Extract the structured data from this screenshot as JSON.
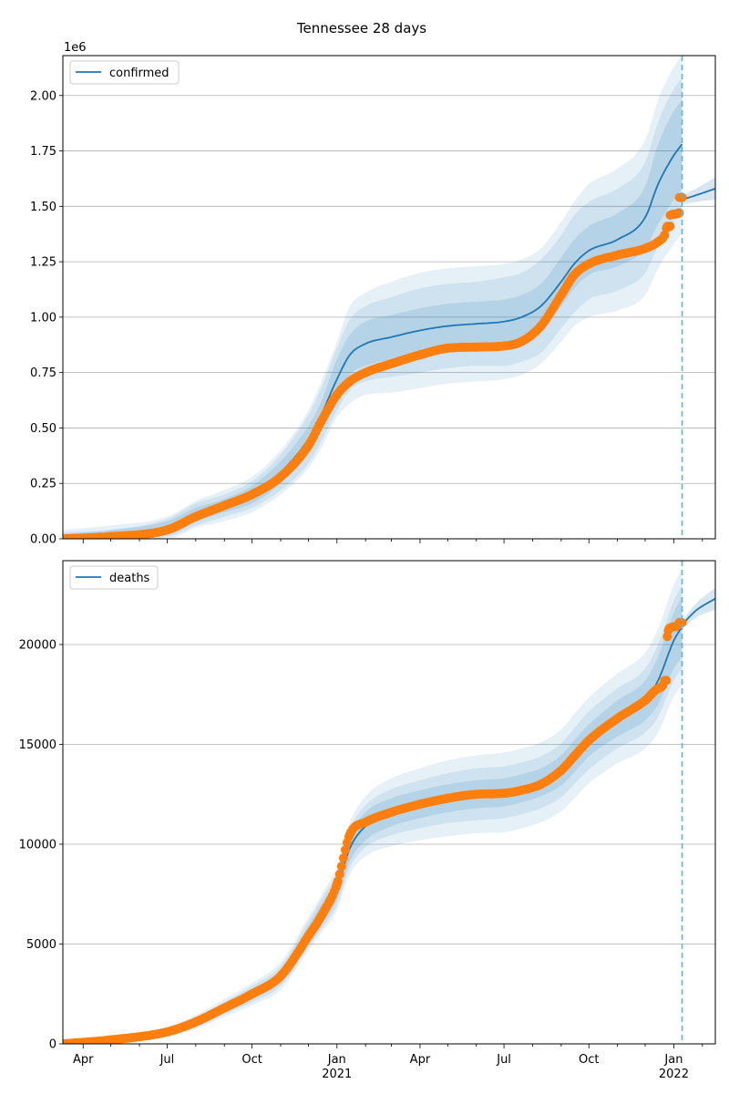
{
  "title": "Tennessee 28 days",
  "colors": {
    "line": "#1f77b4",
    "observed": "#ff7f0e",
    "band": "#1f77b4",
    "forecast_start": "#6baed6",
    "grid": "#b0b0b0"
  },
  "chart_data": [
    {
      "type": "line",
      "series_name": "confirmed",
      "offset_label": "1e6",
      "ylim": [
        0,
        2.18
      ],
      "yticks": [
        0.0,
        0.25,
        0.5,
        0.75,
        1.0,
        1.25,
        1.5,
        1.75,
        2.0
      ],
      "ytick_labels": [
        "0.00",
        "0.25",
        "0.50",
        "0.75",
        "1.00",
        "1.25",
        "1.50",
        "1.75",
        "2.00"
      ],
      "grid": "horizontal",
      "legend": "top-left",
      "forecast_start": "2022-01-10",
      "xlim": [
        "2020-03-10",
        "2022-02-15"
      ],
      "model": {
        "dates": [
          "2020-03-10",
          "2020-05-01",
          "2020-07-01",
          "2020-08-01",
          "2020-09-01",
          "2020-10-01",
          "2020-11-01",
          "2020-12-01",
          "2020-12-15",
          "2021-01-01",
          "2021-01-15",
          "2021-02-01",
          "2021-03-01",
          "2021-04-01",
          "2021-05-01",
          "2021-06-01",
          "2021-07-01",
          "2021-07-20",
          "2021-08-10",
          "2021-09-01",
          "2021-09-15",
          "2021-10-01",
          "2021-11-01",
          "2021-12-01",
          "2021-12-15",
          "2022-01-01",
          "2022-01-10"
        ],
        "values": [
          0.0,
          0.01,
          0.05,
          0.11,
          0.15,
          0.2,
          0.3,
          0.45,
          0.56,
          0.72,
          0.83,
          0.88,
          0.91,
          0.94,
          0.96,
          0.97,
          0.98,
          1.0,
          1.05,
          1.16,
          1.24,
          1.3,
          1.35,
          1.45,
          1.6,
          1.73,
          1.78
        ],
        "band_1": [
          0.02,
          0.03,
          0.03,
          0.03,
          0.03,
          0.04,
          0.05,
          0.06,
          0.06,
          0.09,
          0.09,
          0.1,
          0.1,
          0.1,
          0.1,
          0.1,
          0.1,
          0.1,
          0.1,
          0.11,
          0.11,
          0.11,
          0.12,
          0.14,
          0.18,
          0.2,
          0.2
        ],
        "band_2": [
          0.03,
          0.03,
          0.04,
          0.05,
          0.05,
          0.06,
          0.08,
          0.11,
          0.12,
          0.14,
          0.16,
          0.17,
          0.18,
          0.19,
          0.19,
          0.19,
          0.2,
          0.2,
          0.21,
          0.21,
          0.22,
          0.22,
          0.23,
          0.25,
          0.28,
          0.3,
          0.3
        ],
        "band_3": [
          0.04,
          0.05,
          0.05,
          0.06,
          0.07,
          0.08,
          0.1,
          0.13,
          0.15,
          0.17,
          0.22,
          0.23,
          0.25,
          0.26,
          0.26,
          0.26,
          0.26,
          0.26,
          0.26,
          0.27,
          0.28,
          0.3,
          0.32,
          0.35,
          0.38,
          0.4,
          0.4
        ]
      },
      "forecast": {
        "dates": [
          "2022-01-10",
          "2022-01-25",
          "2022-02-15"
        ],
        "values": [
          1.53,
          1.55,
          1.58
        ],
        "band": [
          0.02,
          0.03,
          0.05
        ]
      },
      "observed": {
        "dates": [
          "2020-03-10",
          "2020-05-01",
          "2020-07-01",
          "2020-08-01",
          "2020-09-01",
          "2020-10-01",
          "2020-11-01",
          "2020-12-01",
          "2020-12-15",
          "2021-01-01",
          "2021-01-15",
          "2021-02-01",
          "2021-03-01",
          "2021-04-01",
          "2021-05-01",
          "2021-06-01",
          "2021-07-01",
          "2021-07-20",
          "2021-08-10",
          "2021-09-01",
          "2021-09-15",
          "2021-10-01",
          "2021-11-01",
          "2021-12-01",
          "2021-12-15",
          "2021-12-22",
          "2021-12-25",
          "2021-12-27",
          "2021-12-28",
          "2022-01-03",
          "2022-01-06",
          "2022-01-07",
          "2022-01-10"
        ],
        "values": [
          0.0,
          0.01,
          0.04,
          0.1,
          0.15,
          0.2,
          0.28,
          0.42,
          0.53,
          0.65,
          0.71,
          0.75,
          0.79,
          0.83,
          0.86,
          0.865,
          0.87,
          0.89,
          0.96,
          1.1,
          1.19,
          1.24,
          1.28,
          1.31,
          1.34,
          1.37,
          1.41,
          1.41,
          1.46,
          1.465,
          1.47,
          1.54,
          1.54
        ]
      }
    },
    {
      "type": "line",
      "series_name": "deaths",
      "ylim": [
        0,
        24200
      ],
      "yticks": [
        0,
        5000,
        10000,
        15000,
        20000
      ],
      "ytick_labels": [
        "0",
        "5000",
        "10000",
        "15000",
        "20000"
      ],
      "grid": "horizontal",
      "legend": "top-left",
      "forecast_start": "2022-01-10",
      "xlim": [
        "2020-03-10",
        "2022-02-15"
      ],
      "xticks": [
        {
          "date": "2020-04-01",
          "label": "Apr",
          "year": ""
        },
        {
          "date": "2020-07-01",
          "label": "Jul",
          "year": ""
        },
        {
          "date": "2020-10-01",
          "label": "Oct",
          "year": ""
        },
        {
          "date": "2021-01-01",
          "label": "Jan",
          "year": "2021"
        },
        {
          "date": "2021-04-01",
          "label": "Apr",
          "year": ""
        },
        {
          "date": "2021-07-01",
          "label": "Jul",
          "year": ""
        },
        {
          "date": "2021-10-01",
          "label": "Oct",
          "year": ""
        },
        {
          "date": "2022-01-01",
          "label": "Jan",
          "year": "2022"
        }
      ],
      "model": {
        "dates": [
          "2020-03-10",
          "2020-05-01",
          "2020-07-01",
          "2020-08-01",
          "2020-09-01",
          "2020-10-01",
          "2020-11-01",
          "2020-12-01",
          "2020-12-15",
          "2021-01-01",
          "2021-01-15",
          "2021-02-01",
          "2021-03-01",
          "2021-04-01",
          "2021-05-01",
          "2021-06-01",
          "2021-07-01",
          "2021-07-20",
          "2021-08-10",
          "2021-09-01",
          "2021-09-15",
          "2021-10-01",
          "2021-11-01",
          "2021-12-01",
          "2021-12-15",
          "2022-01-01",
          "2022-01-10"
        ],
        "values": [
          0,
          200,
          600,
          1100,
          1800,
          2500,
          3400,
          5500,
          6500,
          7800,
          9800,
          10900,
          11600,
          12000,
          12300,
          12500,
          12600,
          12800,
          13100,
          13700,
          14400,
          15200,
          16300,
          17200,
          18200,
          20200,
          20900
        ],
        "band_1": [
          50,
          80,
          100,
          150,
          200,
          250,
          300,
          400,
          500,
          550,
          650,
          700,
          700,
          700,
          700,
          700,
          700,
          700,
          700,
          750,
          800,
          800,
          900,
          1000,
          1200,
          1400,
          1500
        ],
        "band_2": [
          80,
          120,
          180,
          250,
          300,
          400,
          500,
          650,
          750,
          850,
          950,
          1050,
          1150,
          1200,
          1250,
          1300,
          1300,
          1300,
          1300,
          1350,
          1400,
          1450,
          1500,
          1600,
          1800,
          2000,
          2100
        ],
        "band_3": [
          100,
          150,
          250,
          350,
          450,
          550,
          700,
          850,
          950,
          1100,
          1300,
          1500,
          1700,
          1800,
          1900,
          1950,
          2000,
          2000,
          2000,
          2050,
          2100,
          2150,
          2250,
          2400,
          2600,
          2800,
          2900
        ]
      },
      "forecast": {
        "dates": [
          "2022-01-10",
          "2022-01-25",
          "2022-02-15"
        ],
        "values": [
          21000,
          21700,
          22300
        ],
        "band": [
          200,
          350,
          550
        ]
      },
      "observed": {
        "dates": [
          "2020-03-10",
          "2020-05-01",
          "2020-07-01",
          "2020-08-01",
          "2020-09-01",
          "2020-10-01",
          "2020-11-01",
          "2020-12-01",
          "2020-12-15",
          "2021-01-01",
          "2021-01-15",
          "2021-02-01",
          "2021-03-01",
          "2021-04-01",
          "2021-05-01",
          "2021-06-01",
          "2021-07-01",
          "2021-07-20",
          "2021-08-10",
          "2021-09-01",
          "2021-09-15",
          "2021-10-01",
          "2021-11-01",
          "2021-12-01",
          "2021-12-15",
          "2021-12-22",
          "2021-12-25",
          "2021-12-27",
          "2022-01-03",
          "2022-01-06",
          "2022-01-07",
          "2022-01-10"
        ],
        "values": [
          0,
          200,
          600,
          1100,
          1800,
          2500,
          3400,
          5400,
          6400,
          8000,
          10500,
          11100,
          11600,
          12000,
          12300,
          12500,
          12550,
          12700,
          13000,
          13700,
          14400,
          15200,
          16300,
          17200,
          17800,
          18200,
          20400,
          20800,
          20900,
          21000,
          21100,
          21100
        ]
      }
    }
  ]
}
